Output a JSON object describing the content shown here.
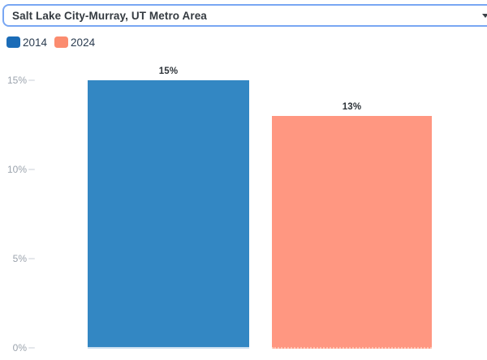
{
  "combobox": {
    "value": "Salt Lake City-Murray, UT Metro Area"
  },
  "legend": {
    "position": "top-left",
    "items": [
      {
        "label": "2014",
        "color": "#1b6cb7"
      },
      {
        "label": "2024",
        "color": "#fb8c6f"
      }
    ]
  },
  "chart_data": {
    "type": "bar",
    "title": "",
    "xlabel": "",
    "ylabel": "",
    "categories": [
      "2014",
      "2024"
    ],
    "values": [
      15,
      13
    ],
    "value_labels": [
      "15%",
      "13%"
    ],
    "bar_colors": [
      "#3387c3",
      "#ff9781"
    ],
    "bar_edge_colors": [
      "#c9def0",
      "#ffc4b4"
    ],
    "unit": "%",
    "ylim": [
      0,
      15
    ],
    "yticks": [
      {
        "label": "0%",
        "value": 0
      },
      {
        "label": "5%",
        "value": 5
      },
      {
        "label": "10%",
        "value": 10
      },
      {
        "label": "15%",
        "value": 15
      }
    ],
    "grid": false,
    "legend_position": "top-left",
    "legend_entries": [
      "2014",
      "2024"
    ]
  }
}
